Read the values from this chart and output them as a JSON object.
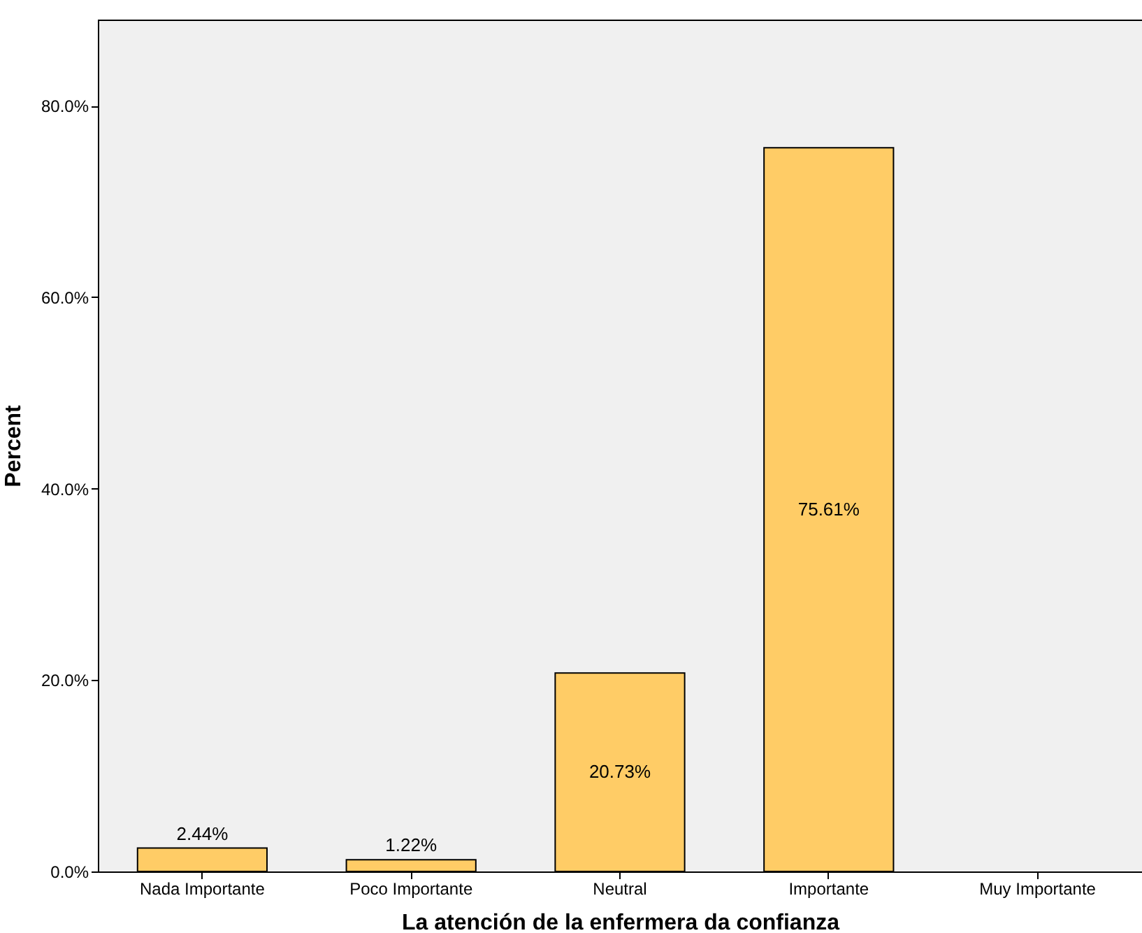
{
  "chart_data": {
    "type": "bar",
    "xlabel": "La atención de la enfermera da confianza",
    "ylabel": "Percent",
    "categories": [
      "Nada Importante",
      "Poco Importante",
      "Neutral",
      "Importante",
      "Muy Importante"
    ],
    "values": [
      2.44,
      1.22,
      20.73,
      75.61,
      null
    ],
    "value_labels": [
      "2.44%",
      "1.22%",
      "20.73%",
      "75.61%",
      null
    ],
    "color": "#ffcc66",
    "ylim": [
      0,
      89
    ],
    "yticks": [
      {
        "value": 0,
        "label": "0.0%"
      },
      {
        "value": 20,
        "label": "20.0%"
      },
      {
        "value": 40,
        "label": "40.0%"
      },
      {
        "value": 60,
        "label": "60.0%"
      },
      {
        "value": 80,
        "label": "80.0%"
      }
    ],
    "grid": false,
    "legend": false
  }
}
